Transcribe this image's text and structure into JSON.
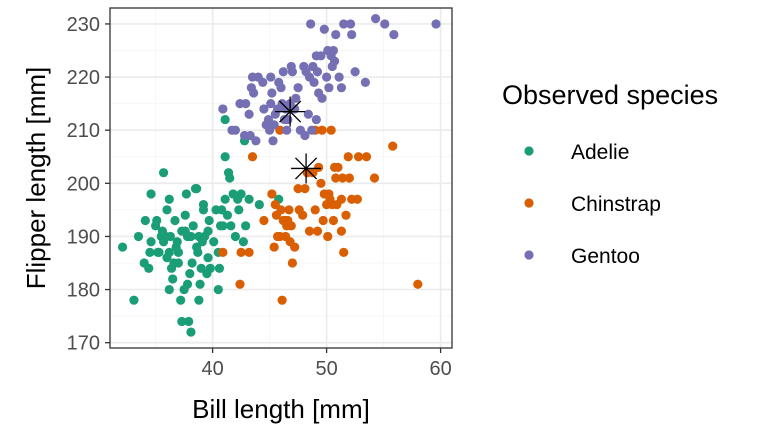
{
  "chart_data": {
    "type": "scatter",
    "xlabel": "Bill length [mm]",
    "ylabel": "Flipper length [mm]",
    "xlim": [
      31,
      61
    ],
    "ylim": [
      169,
      233
    ],
    "xticks": [
      40,
      50,
      60
    ],
    "yticks": [
      170,
      180,
      190,
      200,
      210,
      220,
      230
    ],
    "grid": true,
    "legend": {
      "title": "Observed species",
      "position": "right"
    },
    "series": [
      {
        "name": "Adelie",
        "color": "#1b9e77",
        "points": [
          [
            32.1,
            188
          ],
          [
            33.1,
            178
          ],
          [
            33.5,
            190
          ],
          [
            34.0,
            185
          ],
          [
            34.1,
            193
          ],
          [
            34.4,
            184
          ],
          [
            34.5,
            187
          ],
          [
            34.6,
            189
          ],
          [
            35.0,
            192
          ],
          [
            35.1,
            193
          ],
          [
            35.2,
            187
          ],
          [
            35.3,
            187
          ],
          [
            35.5,
            190
          ],
          [
            35.6,
            191
          ],
          [
            35.7,
            189
          ],
          [
            35.9,
            190
          ],
          [
            36.0,
            186
          ],
          [
            36.0,
            195
          ],
          [
            36.2,
            187
          ],
          [
            36.2,
            197
          ],
          [
            36.3,
            190
          ],
          [
            36.4,
            184
          ],
          [
            36.5,
            182
          ],
          [
            36.6,
            185
          ],
          [
            36.7,
            193
          ],
          [
            36.8,
            188
          ],
          [
            36.9,
            189
          ],
          [
            37.0,
            185
          ],
          [
            37.0,
            187
          ],
          [
            37.2,
            178
          ],
          [
            37.3,
            191
          ],
          [
            37.5,
            180
          ],
          [
            37.6,
            191
          ],
          [
            37.7,
            198
          ],
          [
            37.8,
            181
          ],
          [
            37.8,
            190
          ],
          [
            37.9,
            174
          ],
          [
            38.0,
            183
          ],
          [
            38.1,
            172
          ],
          [
            38.1,
            190
          ],
          [
            38.2,
            185
          ],
          [
            38.3,
            192
          ],
          [
            38.5,
            199
          ],
          [
            38.6,
            188
          ],
          [
            38.7,
            187
          ],
          [
            38.8,
            190
          ],
          [
            38.9,
            181
          ],
          [
            39.0,
            184
          ],
          [
            39.1,
            189
          ],
          [
            39.2,
            196
          ],
          [
            39.3,
            190
          ],
          [
            39.5,
            183
          ],
          [
            39.6,
            191
          ],
          [
            39.7,
            193
          ],
          [
            39.8,
            184
          ],
          [
            40.1,
            189
          ],
          [
            40.3,
            195
          ],
          [
            40.5,
            187
          ],
          [
            40.6,
            184
          ],
          [
            40.8,
            195
          ],
          [
            40.9,
            192
          ],
          [
            41.1,
            197
          ],
          [
            41.3,
            194
          ],
          [
            41.5,
            201
          ],
          [
            41.6,
            192
          ],
          [
            41.8,
            198
          ],
          [
            42.0,
            190
          ],
          [
            42.2,
            197
          ],
          [
            42.3,
            195
          ],
          [
            42.5,
            198
          ],
          [
            42.7,
            189
          ],
          [
            42.9,
            192
          ],
          [
            43.2,
            197
          ],
          [
            44.1,
            196
          ],
          [
            45.8,
            197
          ],
          [
            36.2,
            180
          ],
          [
            37.3,
            174
          ],
          [
            34.6,
            198
          ],
          [
            35.7,
            202
          ],
          [
            38.6,
            199
          ],
          [
            39.2,
            195
          ],
          [
            40.5,
            180
          ],
          [
            41.1,
            205
          ],
          [
            39.6,
            186
          ],
          [
            38.8,
            178
          ],
          [
            37.6,
            194
          ],
          [
            40.7,
            192
          ],
          [
            41.4,
            202
          ],
          [
            42.8,
            208
          ],
          [
            41.1,
            212
          ]
        ]
      },
      {
        "name": "Chinstrap",
        "color": "#d95f02",
        "points": [
          [
            40.9,
            187
          ],
          [
            42.5,
            187
          ],
          [
            43.2,
            187
          ],
          [
            43.5,
            205
          ],
          [
            44.5,
            193
          ],
          [
            45.2,
            198
          ],
          [
            45.4,
            188
          ],
          [
            45.5,
            196
          ],
          [
            45.6,
            194
          ],
          [
            45.7,
            190
          ],
          [
            45.9,
            190
          ],
          [
            46.0,
            195
          ],
          [
            46.1,
            178
          ],
          [
            46.2,
            193
          ],
          [
            46.4,
            190
          ],
          [
            46.5,
            192
          ],
          [
            46.6,
            193
          ],
          [
            46.7,
            195
          ],
          [
            46.8,
            189
          ],
          [
            46.9,
            192
          ],
          [
            47.0,
            185
          ],
          [
            47.5,
            199
          ],
          [
            47.6,
            195
          ],
          [
            48.1,
            199
          ],
          [
            48.5,
            191
          ],
          [
            49.0,
            195
          ],
          [
            49.2,
            191
          ],
          [
            49.5,
            200
          ],
          [
            49.7,
            193
          ],
          [
            49.8,
            198
          ],
          [
            50.0,
            196
          ],
          [
            50.1,
            190
          ],
          [
            50.2,
            198
          ],
          [
            50.3,
            197
          ],
          [
            50.5,
            196
          ],
          [
            50.6,
            193
          ],
          [
            50.7,
            203
          ],
          [
            50.8,
            201
          ],
          [
            50.9,
            196
          ],
          [
            51.0,
            203
          ],
          [
            51.3,
            197
          ],
          [
            51.4,
            201
          ],
          [
            51.5,
            187
          ],
          [
            51.7,
            194
          ],
          [
            51.9,
            205
          ],
          [
            52.0,
            201
          ],
          [
            52.2,
            197
          ],
          [
            52.7,
            197
          ],
          [
            52.8,
            205
          ],
          [
            53.5,
            205
          ],
          [
            54.2,
            201
          ],
          [
            55.8,
            207
          ],
          [
            58.0,
            181
          ],
          [
            49.6,
            210
          ],
          [
            46.4,
            193
          ],
          [
            47.2,
            188
          ],
          [
            48.8,
            202
          ],
          [
            49.3,
            203
          ],
          [
            50.4,
            210
          ],
          [
            45.9,
            210
          ],
          [
            42.4,
            181
          ],
          [
            48.3,
            202
          ],
          [
            47.9,
            194
          ],
          [
            51.3,
            191
          ],
          [
            49.0,
            210
          ]
        ]
      },
      {
        "name": "Gentoo",
        "color": "#7570b3",
        "points": [
          [
            40.9,
            214
          ],
          [
            41.7,
            210
          ],
          [
            42.0,
            210
          ],
          [
            42.4,
            215
          ],
          [
            42.8,
            209
          ],
          [
            42.9,
            215
          ],
          [
            43.2,
            213
          ],
          [
            43.3,
            209
          ],
          [
            43.4,
            218
          ],
          [
            43.5,
            220
          ],
          [
            43.6,
            217
          ],
          [
            43.8,
            208
          ],
          [
            44.0,
            220
          ],
          [
            44.4,
            219
          ],
          [
            44.5,
            214
          ],
          [
            44.9,
            212
          ],
          [
            45.0,
            210
          ],
          [
            45.1,
            215
          ],
          [
            45.2,
            217
          ],
          [
            45.3,
            208
          ],
          [
            45.4,
            211
          ],
          [
            45.5,
            213
          ],
          [
            45.7,
            214
          ],
          [
            45.8,
            219
          ],
          [
            46.1,
            215
          ],
          [
            46.2,
            221
          ],
          [
            46.4,
            214
          ],
          [
            46.5,
            210
          ],
          [
            46.6,
            212
          ],
          [
            46.8,
            215
          ],
          [
            46.9,
            222
          ],
          [
            47.2,
            214
          ],
          [
            47.3,
            216
          ],
          [
            47.5,
            218
          ],
          [
            47.7,
            210
          ],
          [
            48.1,
            209
          ],
          [
            48.2,
            221
          ],
          [
            48.4,
            213
          ],
          [
            48.5,
            220
          ],
          [
            48.6,
            230
          ],
          [
            48.7,
            210
          ],
          [
            48.8,
            222
          ],
          [
            49.1,
            212
          ],
          [
            49.2,
            221
          ],
          [
            49.3,
            217
          ],
          [
            49.5,
            224
          ],
          [
            49.6,
            216
          ],
          [
            49.8,
            229
          ],
          [
            50.0,
            220
          ],
          [
            50.1,
            225
          ],
          [
            50.2,
            218
          ],
          [
            50.4,
            224
          ],
          [
            50.5,
            222
          ],
          [
            50.7,
            223
          ],
          [
            50.8,
            228
          ],
          [
            51.1,
            220
          ],
          [
            51.3,
            218
          ],
          [
            51.5,
            230
          ],
          [
            52.1,
            230
          ],
          [
            52.2,
            228
          ],
          [
            52.5,
            221
          ],
          [
            53.4,
            219
          ],
          [
            54.3,
            231
          ],
          [
            55.1,
            230
          ],
          [
            55.9,
            228
          ],
          [
            59.6,
            230
          ],
          [
            45.1,
            220
          ],
          [
            46.0,
            218
          ],
          [
            47.0,
            221
          ],
          [
            48.9,
            219
          ],
          [
            50.6,
            225
          ],
          [
            49.1,
            224
          ],
          [
            48.0,
            222
          ],
          [
            46.3,
            212
          ],
          [
            44.7,
            211
          ]
        ]
      },
      {
        "name": "",
        "color": "#000000",
        "marker": "asterisk",
        "points": [
          [
            46.8,
            213.5
          ],
          [
            48.2,
            202.8
          ]
        ]
      }
    ]
  }
}
